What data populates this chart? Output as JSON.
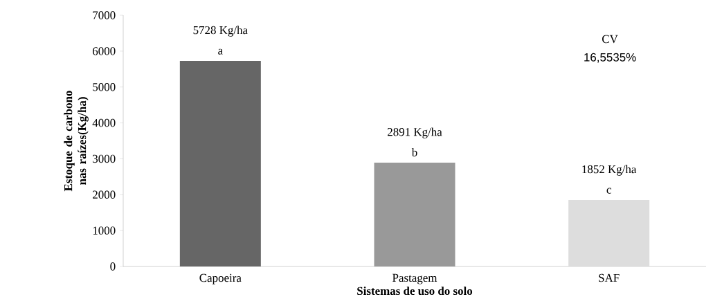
{
  "chart_data": {
    "type": "bar",
    "xlabel": "Sistemas de uso do solo",
    "ylabel": "Estoque de carbono nas raízes(Kg/ha)",
    "categories": [
      "Capoeira",
      "Pastagem",
      "SAF"
    ],
    "values": [
      5728,
      2891,
      1852
    ],
    "colors": [
      "#666666",
      "#999999",
      "#dddddd"
    ],
    "value_labels": [
      "5728 Kg/ha",
      "2891 Kg/ha",
      "1852 Kg/ha"
    ],
    "annotations": [
      {
        "text": "a",
        "x": "Capoeira",
        "y": 5728
      },
      {
        "text": "b",
        "x": "Pastagem",
        "y": 2891
      },
      {
        "text": "c",
        "x": "SAF",
        "y": 1852
      },
      "CV",
      "16,5535%"
    ],
    "ylim": [
      0,
      7000
    ],
    "yticks": [
      0,
      1000,
      2000,
      3000,
      4000,
      5000,
      6000,
      7000
    ],
    "grid": false
  }
}
